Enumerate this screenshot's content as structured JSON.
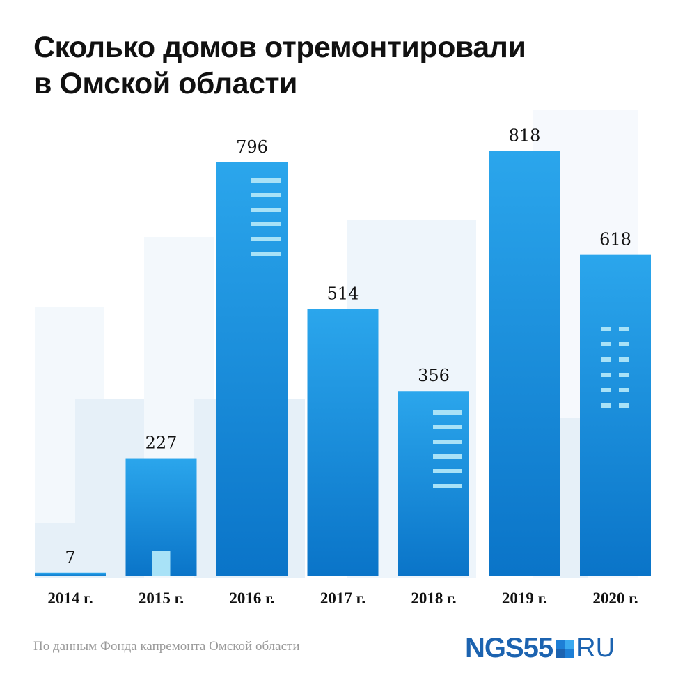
{
  "title_lines": [
    "Сколько домов отремонтировали",
    "в Омской области"
  ],
  "source": "По данным Фонда капремонта Омской области",
  "logo": {
    "main": "NGS55",
    "suffix": "RU"
  },
  "colors": {
    "bar_top": "#2ba6ec",
    "bar_bottom": "#0a74c8",
    "window": "#a8e2f7",
    "bg_building": "#e8f2fa"
  },
  "chart_data": {
    "type": "bar",
    "title": "Сколько домов отремонтировали в Омской области",
    "categories": [
      "2014 г.",
      "2015 г.",
      "2016 г.",
      "2017 г.",
      "2018 г.",
      "2019 г.",
      "2020 г."
    ],
    "values": [
      7,
      227,
      796,
      514,
      356,
      818,
      618
    ],
    "xlabel": "",
    "ylabel": "",
    "ylim": [
      0,
      818
    ],
    "grid": false
  }
}
